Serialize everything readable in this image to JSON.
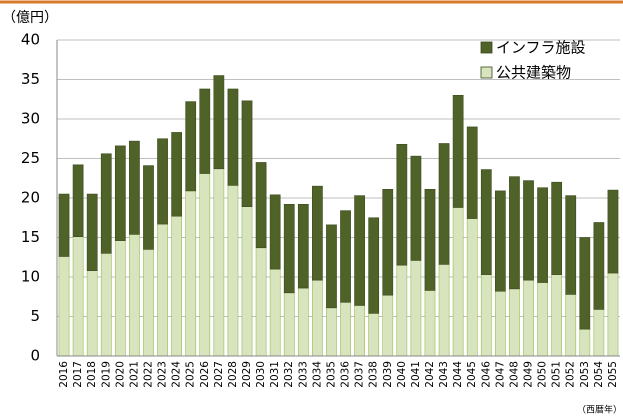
{
  "chart_data": {
    "type": "stacked_bar",
    "y_unit": "（億円）",
    "x_unit": "（西暦年）",
    "categories": [
      "2016",
      "2017",
      "2018",
      "2019",
      "2020",
      "2021",
      "2022",
      "2023",
      "2024",
      "2025",
      "2026",
      "2027",
      "2028",
      "2029",
      "2030",
      "2031",
      "2032",
      "2033",
      "2034",
      "2035",
      "2036",
      "2037",
      "2038",
      "2039",
      "2040",
      "2041",
      "2042",
      "2043",
      "2044",
      "2045",
      "2046",
      "2047",
      "2048",
      "2049",
      "2050",
      "2051",
      "2052",
      "2053",
      "2054",
      "2055"
    ],
    "series": [
      {
        "name": "公共建築物",
        "color": "#d7e4bd",
        "values": [
          12.6,
          15.1,
          10.8,
          13.0,
          14.6,
          15.4,
          13.5,
          16.7,
          17.7,
          20.9,
          23.1,
          23.7,
          21.6,
          18.9,
          13.7,
          11.0,
          8.0,
          8.6,
          9.6,
          6.1,
          6.8,
          6.4,
          5.4,
          7.7,
          11.5,
          12.1,
          8.3,
          11.6,
          18.8,
          17.4,
          10.3,
          8.2,
          8.5,
          9.6,
          9.3,
          10.3,
          7.8,
          3.4,
          5.9,
          10.5
        ]
      },
      {
        "name": "インフラ施設",
        "color": "#4f6228",
        "values": [
          7.9,
          9.1,
          9.7,
          12.6,
          12.0,
          11.8,
          10.6,
          10.8,
          10.6,
          11.3,
          10.7,
          11.8,
          12.2,
          13.4,
          10.8,
          9.4,
          11.2,
          10.6,
          11.9,
          10.5,
          11.6,
          13.9,
          12.1,
          13.4,
          15.3,
          13.2,
          12.8,
          15.3,
          14.2,
          11.6,
          13.3,
          12.7,
          14.2,
          12.6,
          12.0,
          11.7,
          12.5,
          11.6,
          11.0,
          10.5
        ]
      }
    ],
    "ylim": [
      0,
      40
    ],
    "yticks": [
      0,
      5,
      10,
      15,
      20,
      25,
      30,
      35,
      40
    ],
    "grid": true,
    "legend": "top-right"
  }
}
